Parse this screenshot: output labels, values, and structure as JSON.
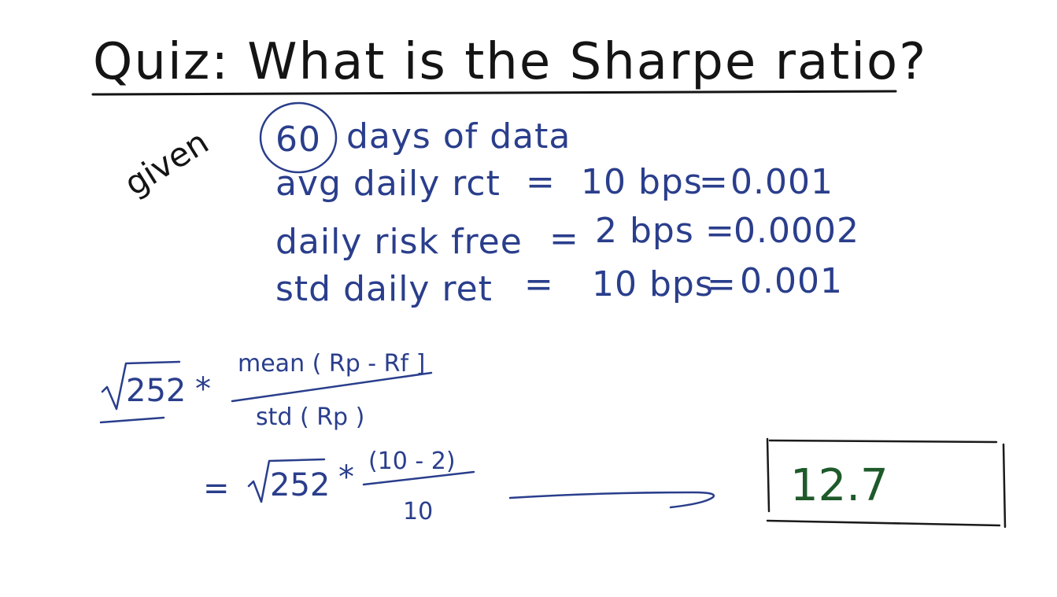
{
  "title": "Quiz: What is the Sharpe ratio?",
  "given_label": "given",
  "given": {
    "days_number": "60",
    "days_text": "days of data",
    "avg_label": "avg daily rct",
    "avg_bps": "10 bps",
    "avg_value": "0.001",
    "rf_label": "daily risk free",
    "rf_bps": "2 bps",
    "rf_value": "0.0002",
    "std_label": "std daily ret",
    "std_bps": "10 bps",
    "std_value": "0.001"
  },
  "formula": {
    "sqrt_value": "252",
    "times": "*",
    "numerator": "mean ( Rp - Rf ]",
    "denominator": "std ( Rp )"
  },
  "computation": {
    "equals": "=",
    "sqrt_value": "252",
    "times": "*",
    "numerator": "(10 - 2)",
    "denominator": "10"
  },
  "answer": "12.7",
  "colors": {
    "black_ink": "#141414",
    "blue_ink": "#2a3e8c",
    "green_ink": "#1e5a2a"
  }
}
